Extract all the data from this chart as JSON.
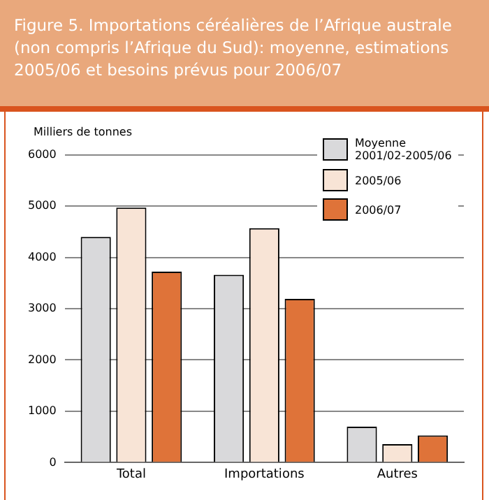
{
  "chart_data": {
    "type": "bar",
    "title": "Figure 5. Importations céréalières de l’Afrique australe (non compris l’Afrique du Sud): moyenne, estimations 2005/06 et besoins prévus pour 2006/07",
    "ylabel": "Milliers de tonnes",
    "categories": [
      "Total",
      "Importations",
      "Autres"
    ],
    "series": [
      {
        "name": "Moyenne 2001/02-2005/06",
        "color": "#d9d9db",
        "values": [
          4400,
          3660,
          700
        ]
      },
      {
        "name": "2005/06",
        "color": "#f8e4d6",
        "values": [
          4970,
          4570,
          360
        ]
      },
      {
        "name": "2006/07",
        "color": "#df7339",
        "values": [
          3720,
          3190,
          530
        ]
      }
    ],
    "ylim": [
      0,
      6000
    ],
    "yticks": [
      0,
      1000,
      2000,
      3000,
      4000,
      5000,
      6000
    ],
    "grid": "y",
    "legend": "top right"
  }
}
